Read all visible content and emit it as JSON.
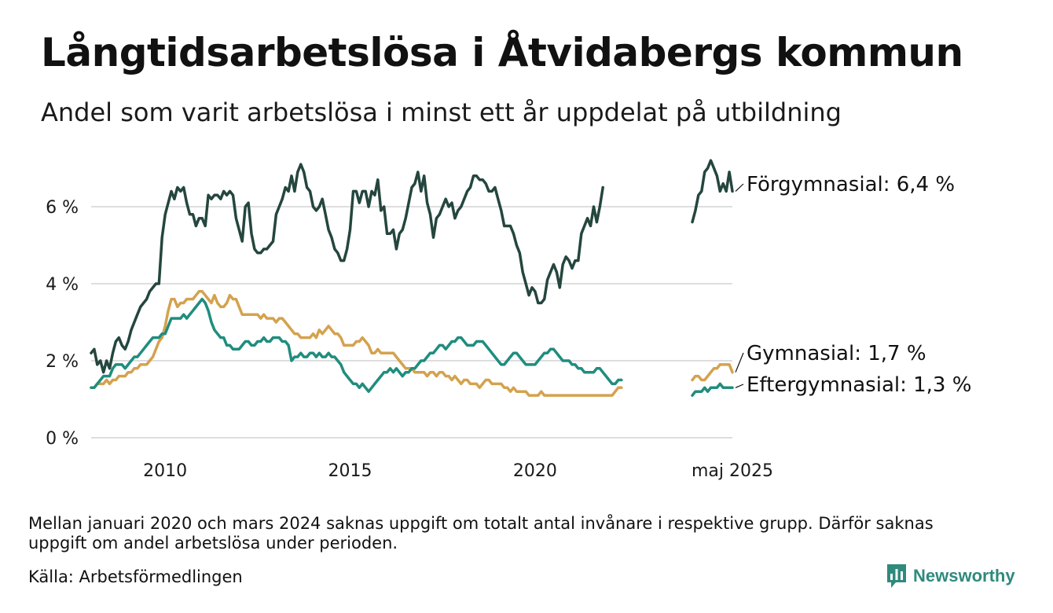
{
  "header": {
    "title": "Långtidsarbetslösa i Åtvidabergs kommun",
    "subtitle": "Andel som varit arbetslösa i minst ett år uppdelat på utbildning"
  },
  "footer": {
    "note": "Mellan januari 2020 och mars 2024 saknas uppgift om totalt antal invånare i respektive grupp. Därför saknas uppgift om andel arbetslösa under perioden.",
    "source": "Källa: Arbetsförmedlingen",
    "brand": "Newsworthy",
    "brand_icon": "bar-chart-speech-bubble-icon",
    "brand_color": "#2f8a7d"
  },
  "chart_data": {
    "type": "line",
    "x_unit": "month",
    "ylim": [
      0,
      7.5
    ],
    "y_ticks": [
      0,
      2,
      4,
      6
    ],
    "y_tick_labels": [
      "0 %",
      "2 %",
      "4 %",
      "6 %"
    ],
    "x_ticks": [
      "2010-01",
      "2015-01",
      "2020-01",
      "2025-05"
    ],
    "x_tick_labels": [
      "2010",
      "2015",
      "2020",
      "maj 2025"
    ],
    "grid": "horizontal",
    "legend": "direct labels at line ends (right)",
    "series": [
      {
        "name": "Förgymnasial",
        "end_label": "Förgymnasial: 6,4 %",
        "color": "#24463e",
        "segments": [
          {
            "start": "2008-01",
            "values": [
              2.2,
              2.3,
              1.9,
              2.0,
              1.7,
              2.0,
              1.8,
              2.2,
              2.5,
              2.6,
              2.4,
              2.3,
              2.5,
              2.8,
              3.0,
              3.2,
              3.4,
              3.5,
              3.6,
              3.8,
              3.9,
              4.0,
              4.0,
              5.2,
              5.8,
              6.1,
              6.4,
              6.2,
              6.5,
              6.4,
              6.5,
              6.1,
              5.8,
              5.8,
              5.5,
              5.7,
              5.7,
              5.5,
              6.3,
              6.2,
              6.3,
              6.3,
              6.2,
              6.4,
              6.3,
              6.4,
              6.3,
              5.7,
              5.4,
              5.1,
              6.0,
              6.1,
              5.3,
              4.9,
              4.8,
              4.8,
              4.9,
              4.9,
              5.0,
              5.1,
              5.8,
              6.0,
              6.2,
              6.5,
              6.4,
              6.8,
              6.4,
              6.9,
              7.1,
              6.9,
              6.5,
              6.4,
              6.0,
              5.9,
              6.0,
              6.2,
              5.8,
              5.4,
              5.2,
              4.9,
              4.8,
              4.6,
              4.6,
              4.9,
              5.4,
              6.4,
              6.4,
              6.1,
              6.4,
              6.4,
              6.0,
              6.4,
              6.3,
              6.7,
              5.9,
              6.0,
              5.3,
              5.3,
              5.4,
              4.9,
              5.3,
              5.4,
              5.7,
              6.1,
              6.5,
              6.6,
              6.9,
              6.4,
              6.8,
              6.1,
              5.8,
              5.2,
              5.7,
              5.8,
              6.0,
              6.2,
              6.0,
              6.1,
              5.7,
              5.9,
              6.0,
              6.2,
              6.4,
              6.5,
              6.8,
              6.8,
              6.7,
              6.7,
              6.6,
              6.4,
              6.4,
              6.5,
              6.2,
              5.9,
              5.5,
              5.5,
              5.5,
              5.3,
              5.0,
              4.8,
              4.3,
              4.0,
              3.7,
              3.9,
              3.8,
              3.5,
              3.5,
              3.6,
              4.1,
              4.3,
              4.5,
              4.3,
              3.9,
              4.5,
              4.7,
              4.6,
              4.4,
              4.6,
              4.6,
              5.3,
              5.5,
              5.7,
              5.5,
              6.0,
              5.6,
              6.0,
              6.5
            ]
          },
          {
            "start": "2024-04",
            "values": [
              5.6,
              5.9,
              6.3,
              6.4,
              6.9,
              7.0,
              7.2,
              7.0,
              6.8,
              6.4,
              6.6,
              6.4,
              6.9,
              6.4
            ]
          }
        ]
      },
      {
        "name": "Gymnasial",
        "end_label": "Gymnasial: 1,7 %",
        "color": "#d4a24e",
        "segments": [
          {
            "start": "2008-01",
            "values": [
              1.3,
              1.3,
              1.4,
              1.4,
              1.4,
              1.5,
              1.4,
              1.5,
              1.5,
              1.6,
              1.6,
              1.6,
              1.7,
              1.7,
              1.8,
              1.8,
              1.9,
              1.9,
              1.9,
              2.0,
              2.1,
              2.3,
              2.5,
              2.6,
              2.9,
              3.3,
              3.6,
              3.6,
              3.4,
              3.5,
              3.5,
              3.6,
              3.6,
              3.6,
              3.7,
              3.8,
              3.8,
              3.7,
              3.6,
              3.5,
              3.7,
              3.5,
              3.4,
              3.4,
              3.5,
              3.7,
              3.6,
              3.6,
              3.4,
              3.2,
              3.2,
              3.2,
              3.2,
              3.2,
              3.2,
              3.1,
              3.2,
              3.1,
              3.1,
              3.1,
              3.0,
              3.1,
              3.1,
              3.0,
              2.9,
              2.8,
              2.7,
              2.7,
              2.6,
              2.6,
              2.6,
              2.6,
              2.7,
              2.6,
              2.8,
              2.7,
              2.8,
              2.9,
              2.8,
              2.7,
              2.7,
              2.6,
              2.4,
              2.4,
              2.4,
              2.4,
              2.5,
              2.5,
              2.6,
              2.5,
              2.4,
              2.2,
              2.2,
              2.3,
              2.2,
              2.2,
              2.2,
              2.2,
              2.2,
              2.1,
              2.0,
              1.9,
              1.8,
              1.8,
              1.8,
              1.7,
              1.7,
              1.7,
              1.7,
              1.6,
              1.7,
              1.7,
              1.6,
              1.7,
              1.7,
              1.6,
              1.6,
              1.5,
              1.6,
              1.5,
              1.4,
              1.5,
              1.5,
              1.4,
              1.4,
              1.4,
              1.3,
              1.4,
              1.5,
              1.5,
              1.4,
              1.4,
              1.4,
              1.4,
              1.3,
              1.3,
              1.2,
              1.3,
              1.2,
              1.2,
              1.2,
              1.2,
              1.1,
              1.1,
              1.1,
              1.1,
              1.2,
              1.1,
              1.1,
              1.1,
              1.1,
              1.1,
              1.1,
              1.1,
              1.1,
              1.1,
              1.1,
              1.1,
              1.1,
              1.1,
              1.1,
              1.1,
              1.1,
              1.1,
              1.1,
              1.1,
              1.1,
              1.1,
              1.1,
              1.1,
              1.2,
              1.3,
              1.3
            ]
          },
          {
            "start": "2024-04",
            "values": [
              1.5,
              1.6,
              1.6,
              1.5,
              1.5,
              1.6,
              1.7,
              1.8,
              1.8,
              1.9,
              1.9,
              1.9,
              1.9,
              1.7
            ]
          }
        ]
      },
      {
        "name": "Eftergymnasial",
        "end_label": "Eftergymnasial: 1,3 %",
        "color": "#1f8d7e",
        "segments": [
          {
            "start": "2008-01",
            "values": [
              1.3,
              1.3,
              1.4,
              1.5,
              1.6,
              1.6,
              1.6,
              1.8,
              1.9,
              1.9,
              1.9,
              1.8,
              1.9,
              2.0,
              2.1,
              2.1,
              2.2,
              2.3,
              2.4,
              2.5,
              2.6,
              2.6,
              2.6,
              2.7,
              2.7,
              2.9,
              3.1,
              3.1,
              3.1,
              3.1,
              3.2,
              3.1,
              3.2,
              3.3,
              3.4,
              3.5,
              3.6,
              3.5,
              3.3,
              3.0,
              2.8,
              2.7,
              2.6,
              2.6,
              2.4,
              2.4,
              2.3,
              2.3,
              2.3,
              2.4,
              2.5,
              2.5,
              2.4,
              2.4,
              2.5,
              2.5,
              2.6,
              2.5,
              2.5,
              2.6,
              2.6,
              2.6,
              2.5,
              2.5,
              2.4,
              2.0,
              2.1,
              2.1,
              2.2,
              2.1,
              2.1,
              2.2,
              2.2,
              2.1,
              2.2,
              2.1,
              2.1,
              2.2,
              2.1,
              2.1,
              2.0,
              1.9,
              1.7,
              1.6,
              1.5,
              1.4,
              1.4,
              1.3,
              1.4,
              1.3,
              1.2,
              1.3,
              1.4,
              1.5,
              1.6,
              1.7,
              1.7,
              1.8,
              1.7,
              1.8,
              1.7,
              1.6,
              1.7,
              1.7,
              1.8,
              1.8,
              1.9,
              2.0,
              2.0,
              2.1,
              2.2,
              2.2,
              2.3,
              2.4,
              2.4,
              2.3,
              2.4,
              2.5,
              2.5,
              2.6,
              2.6,
              2.5,
              2.4,
              2.4,
              2.4,
              2.5,
              2.5,
              2.5,
              2.4,
              2.3,
              2.2,
              2.1,
              2.0,
              1.9,
              1.9,
              2.0,
              2.1,
              2.2,
              2.2,
              2.1,
              2.0,
              1.9,
              1.9,
              1.9,
              1.9,
              2.0,
              2.1,
              2.2,
              2.2,
              2.3,
              2.3,
              2.2,
              2.1,
              2.0,
              2.0,
              2.0,
              1.9,
              1.9,
              1.8,
              1.8,
              1.7,
              1.7,
              1.7,
              1.7,
              1.8,
              1.8,
              1.7,
              1.6,
              1.5,
              1.4,
              1.4,
              1.5,
              1.5
            ]
          },
          {
            "start": "2024-04",
            "values": [
              1.1,
              1.2,
              1.2,
              1.2,
              1.3,
              1.2,
              1.3,
              1.3,
              1.3,
              1.4,
              1.3,
              1.3,
              1.3,
              1.3
            ]
          }
        ]
      }
    ]
  }
}
